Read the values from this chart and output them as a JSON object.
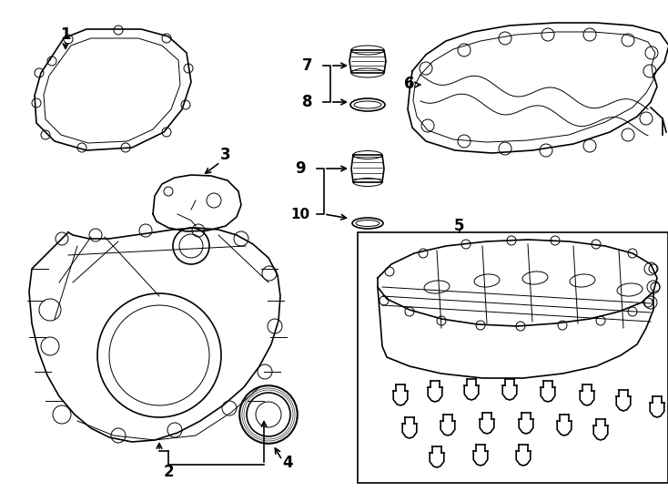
{
  "bg_color": "#ffffff",
  "lc": "#000000",
  "lw": 1.2,
  "tlw": 0.7,
  "fw": 7.34,
  "fh": 5.4,
  "dpi": 100
}
